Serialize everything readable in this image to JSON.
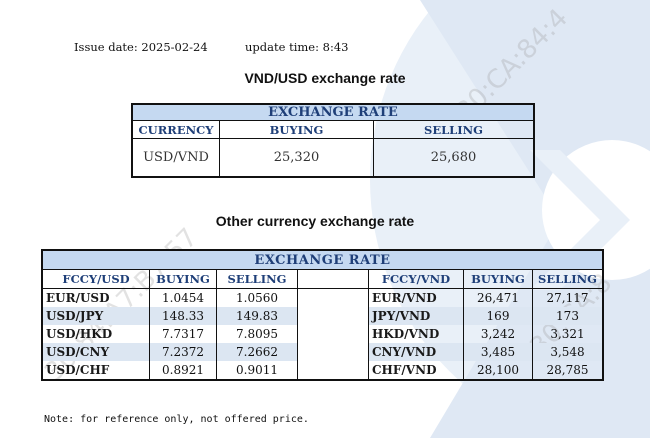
{
  "issue": {
    "date_label": "Issue date:",
    "date_value": "2025-02-24",
    "time_label": "update time:",
    "time_value": "8:43"
  },
  "watermark": {
    "text_a": "30:CA:84:4",
    "text_b": "30:84:A7:B7:57",
    "text_c": "30:CA:8",
    "color": "#c8c8c8"
  },
  "vnd_usd": {
    "title": "VND/USD exchange rate",
    "header": "EXCHANGE RATE",
    "columns": [
      "CURRENCY",
      "BUYING",
      "SELLING"
    ],
    "row": {
      "currency": "USD/VND",
      "buying": "25,320",
      "selling": "25,680"
    }
  },
  "other": {
    "title": "Other currency exchange rate",
    "header": "EXCHANGE  RATE",
    "left_columns": [
      "FCCY/USD",
      "BUYING",
      "SELLING"
    ],
    "right_columns": [
      "FCCY/VND",
      "BUYING",
      "SELLING"
    ],
    "rows": [
      {
        "l_pair": "EUR/USD",
        "l_buy": "1.0454",
        "l_sell": "1.0560",
        "r_pair": "EUR/VND",
        "r_buy": "26,471",
        "r_sell": "27,117"
      },
      {
        "l_pair": "USD/JPY",
        "l_buy": "148.33",
        "l_sell": "149.83",
        "r_pair": "JPY/VND",
        "r_buy": "169",
        "r_sell": "173"
      },
      {
        "l_pair": "USD/HKD",
        "l_buy": "7.7317",
        "l_sell": "7.8095",
        "r_pair": "HKD/VND",
        "r_buy": "3,242",
        "r_sell": "3,321"
      },
      {
        "l_pair": "USD/CNY",
        "l_buy": "7.2372",
        "l_sell": "7.2662",
        "r_pair": "CNY/VND",
        "r_buy": "3,485",
        "r_sell": "3,548"
      },
      {
        "l_pair": "USD/CHF",
        "l_buy": "0.8921",
        "l_sell": "0.9011",
        "r_pair": "CHF/VND",
        "r_buy": "28,100",
        "r_sell": "28,785"
      }
    ]
  },
  "note": "Note: for reference only, not offered price.",
  "colors": {
    "header_fill": "#c5d9f1",
    "alt_row": "#dce6f2",
    "header_text": "#1f3f78",
    "decor": "#e3ebf6"
  }
}
